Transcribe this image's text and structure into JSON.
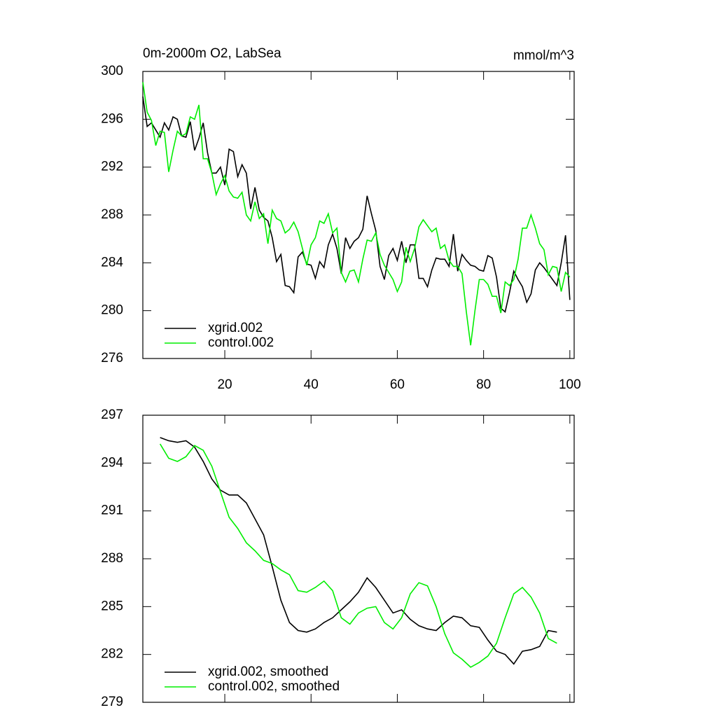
{
  "chart_data": [
    {
      "type": "line",
      "title": "0m-2000m O2, LabSea",
      "subtitle": "mmol/m^3",
      "legend": "lower left",
      "x": [
        1,
        2,
        3,
        4,
        5,
        6,
        7,
        8,
        9,
        10,
        11,
        12,
        13,
        14,
        15,
        16,
        17,
        18,
        19,
        20,
        21,
        22,
        23,
        24,
        25,
        26,
        27,
        28,
        29,
        30,
        31,
        32,
        33,
        34,
        35,
        36,
        37,
        38,
        39,
        40,
        41,
        42,
        43,
        44,
        45,
        46,
        47,
        48,
        49,
        50,
        51,
        52,
        53,
        54,
        55,
        56,
        57,
        58,
        59,
        60,
        61,
        62,
        63,
        64,
        65,
        66,
        67,
        68,
        69,
        70,
        71,
        72,
        73,
        74,
        75,
        76,
        77,
        78,
        79,
        80,
        81,
        82,
        83,
        84,
        85,
        86,
        87,
        88,
        89,
        90,
        91,
        92,
        93,
        94,
        95,
        96,
        97,
        98,
        99,
        100
      ],
      "series": [
        {
          "name": "xgrid.002",
          "color": "#000000",
          "values": [
            297.9,
            295.4,
            295.7,
            295.1,
            294.5,
            295.7,
            295.1,
            296.2,
            296.0,
            294.6,
            294.5,
            295.8,
            293.4,
            294.4,
            295.7,
            293.2,
            291.5,
            291.5,
            292.0,
            290.5,
            293.5,
            293.3,
            291.2,
            292.2,
            291.5,
            288.5,
            290.3,
            288.4,
            287.8,
            287.5,
            286.1,
            284.1,
            284.7,
            282.1,
            282.0,
            281.5,
            284.5,
            284.9,
            283.9,
            283.8,
            282.7,
            284.1,
            283.6,
            285.5,
            286.4,
            285.2,
            283.1,
            286.1,
            285.2,
            285.8,
            286.1,
            286.8,
            289.6,
            288.1,
            286.7,
            283.7,
            282.6,
            284.6,
            285.2,
            284.2,
            285.8,
            284.0,
            285.5,
            285.5,
            282.7,
            282.7,
            282.0,
            283.4,
            284.4,
            284.3,
            284.3,
            283.7,
            286.4,
            283.3,
            284.7,
            284.2,
            283.8,
            283.7,
            283.4,
            283.3,
            284.6,
            284.4,
            282.8,
            280.2,
            279.9,
            281.5,
            283.3,
            282.6,
            282.0,
            280.7,
            281.4,
            283.4,
            284.0,
            283.6,
            283.1,
            282.6,
            282.1,
            284.0,
            286.3,
            280.9
          ]
        },
        {
          "name": "control.002",
          "color": "#00ee00",
          "values": [
            299.1,
            296.6,
            295.9,
            293.8,
            295.0,
            294.9,
            291.6,
            293.4,
            295.0,
            294.6,
            294.8,
            296.2,
            296.0,
            297.2,
            292.7,
            292.7,
            291.5,
            289.7,
            290.6,
            291.3,
            290.0,
            289.5,
            289.4,
            289.9,
            288.0,
            287.5,
            289.1,
            287.7,
            288.1,
            285.6,
            288.4,
            287.7,
            287.5,
            286.5,
            286.8,
            287.4,
            286.6,
            285.2,
            283.8,
            285.5,
            286.1,
            287.5,
            287.3,
            288.1,
            286.5,
            286.9,
            283.2,
            282.4,
            283.3,
            283.4,
            282.4,
            284.3,
            285.9,
            285.8,
            286.5,
            284.7,
            283.8,
            283.2,
            282.6,
            281.6,
            282.4,
            285.3,
            284.1,
            285.2,
            287.0,
            287.6,
            287.1,
            286.6,
            286.9,
            285.2,
            285.5,
            284.2,
            283.7,
            283.7,
            283.1,
            279.9,
            277.1,
            280.0,
            282.6,
            282.6,
            282.2,
            281.2,
            281.2,
            279.8,
            282.4,
            282.1,
            282.6,
            284.3,
            286.9,
            286.9,
            288.0,
            286.9,
            285.6,
            285.1,
            283.0,
            283.7,
            283.6,
            281.6,
            283.2,
            282.8
          ]
        }
      ],
      "xlim": [
        1,
        101
      ],
      "xticks": [
        20,
        40,
        60,
        80,
        100
      ],
      "ylim": [
        276,
        300
      ],
      "yticks": [
        276,
        280,
        284,
        288,
        292,
        296,
        300
      ]
    },
    {
      "type": "line",
      "legend": "lower left",
      "show_xtick_labels": false,
      "x": [
        5,
        7,
        9,
        11,
        13,
        15,
        17,
        19,
        21,
        23,
        25,
        27,
        29,
        31,
        33,
        35,
        37,
        39,
        41,
        43,
        45,
        47,
        49,
        51,
        53,
        55,
        57,
        59,
        61,
        63,
        65,
        67,
        69,
        71,
        73,
        75,
        77,
        79,
        81,
        83,
        85,
        87,
        89,
        91,
        93,
        95,
        97
      ],
      "series": [
        {
          "name": "xgrid.002, smoothed",
          "color": "#000000",
          "values": [
            295.6,
            295.4,
            295.3,
            295.4,
            295.0,
            294.1,
            293.0,
            292.3,
            292.0,
            292.0,
            291.5,
            290.5,
            289.5,
            287.5,
            285.4,
            284.0,
            283.5,
            283.4,
            283.6,
            284.0,
            284.3,
            284.8,
            285.3,
            285.9,
            286.8,
            286.2,
            285.4,
            284.6,
            284.8,
            284.2,
            283.8,
            283.6,
            283.5,
            284.0,
            284.4,
            284.3,
            283.8,
            283.7,
            282.9,
            282.2,
            282.0,
            281.4,
            282.2,
            282.3,
            282.5,
            283.5,
            283.4
          ]
        },
        {
          "name": "control.002, smoothed",
          "color": "#00ee00",
          "values": [
            295.2,
            294.3,
            294.1,
            294.4,
            295.1,
            294.8,
            293.8,
            292.2,
            290.6,
            289.9,
            289.0,
            288.5,
            287.9,
            287.7,
            287.3,
            287.0,
            286.0,
            285.9,
            286.2,
            286.6,
            286.0,
            284.3,
            283.9,
            284.6,
            284.9,
            285.0,
            284.0,
            283.6,
            284.3,
            285.8,
            286.5,
            286.3,
            285.0,
            283.3,
            282.1,
            281.7,
            281.2,
            281.5,
            281.9,
            282.7,
            284.3,
            285.8,
            286.2,
            285.6,
            284.6,
            283.0,
            282.7
          ]
        }
      ],
      "xlim": [
        1,
        101
      ],
      "xticks": [
        20,
        40,
        60,
        80,
        100
      ],
      "ylim": [
        279,
        297
      ],
      "yticks": [
        279,
        282,
        285,
        288,
        291,
        294,
        297
      ]
    }
  ]
}
